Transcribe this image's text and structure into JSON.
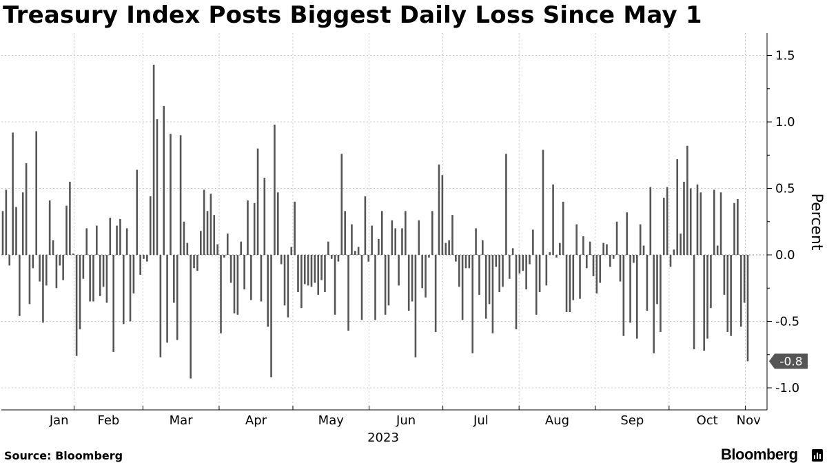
{
  "title": "Treasury Index Posts Biggest Daily Loss Since May 1",
  "source": "Source: Bloomberg",
  "brand": "Bloomberg",
  "brand_icon": "bloomberg-terminal-icon",
  "colors": {
    "bar": "#555555",
    "grid": "#c8c8c8",
    "callout": "#555555",
    "text": "#000000"
  },
  "chart_data": {
    "type": "bar",
    "ylabel": "Percent",
    "ylim": [
      -1.2,
      1.65
    ],
    "yticks": [
      1.5,
      1.0,
      0.5,
      0.0,
      -0.5,
      -1.0
    ],
    "ytick_labels": [
      "1.5",
      "1.0",
      "0.5",
      "0.0",
      "-0.5",
      "-1.0"
    ],
    "grid": true,
    "year_label": "2023",
    "x_start": "2023-01-03",
    "x_end": "2023-11-02",
    "months": [
      {
        "label": "Jan",
        "start": "2023-01-01"
      },
      {
        "label": "Feb",
        "start": "2023-02-01"
      },
      {
        "label": "Mar",
        "start": "2023-03-01"
      },
      {
        "label": "Apr",
        "start": "2023-04-01"
      },
      {
        "label": "May",
        "start": "2023-05-01"
      },
      {
        "label": "Jun",
        "start": "2023-06-01"
      },
      {
        "label": "Jul",
        "start": "2023-07-01"
      },
      {
        "label": "Aug",
        "start": "2023-08-01"
      },
      {
        "label": "Sep",
        "start": "2023-09-01"
      },
      {
        "label": "Oct",
        "start": "2023-10-01"
      },
      {
        "label": "Nov",
        "start": "2023-11-01"
      }
    ],
    "last_value_label": "-0.8",
    "values": [
      0.33,
      0.49,
      -0.08,
      0.92,
      0.36,
      -0.46,
      0.47,
      0.69,
      -0.37,
      -0.1,
      0.93,
      -0.2,
      -0.51,
      -0.23,
      0.41,
      0.11,
      -0.25,
      -0.08,
      -0.19,
      0.37,
      0.55,
      0.01,
      -0.76,
      -0.56,
      -0.18,
      0.2,
      -0.35,
      -0.35,
      0.22,
      -0.31,
      -0.24,
      -0.36,
      0.28,
      -0.73,
      0.22,
      0.27,
      -0.52,
      0.2,
      -0.5,
      -0.29,
      0.64,
      -0.15,
      -0.03,
      -0.05,
      0.44,
      1.43,
      1.02,
      -0.77,
      1.12,
      -0.66,
      0.91,
      -0.36,
      -0.64,
      0.9,
      0.25,
      0.09,
      -0.93,
      -0.1,
      -0.12,
      0.18,
      0.49,
      0.33,
      0.46,
      0.3,
      0.08,
      -0.59,
      -0.02,
      0.16,
      -0.21,
      -0.44,
      -0.45,
      0.1,
      -0.26,
      0.41,
      -0.34,
      0.39,
      0.8,
      -0.35,
      0.58,
      -0.54,
      -0.92,
      0.98,
      0.47,
      -0.07,
      -0.38,
      -0.47,
      0.06,
      0.4,
      -0.28,
      -0.4,
      -0.22,
      -0.23,
      -0.24,
      -0.21,
      -0.3,
      -0.19,
      -0.28,
      0.1,
      -0.03,
      -0.45,
      -0.05,
      0.76,
      0.33,
      -0.57,
      0.23,
      0.03,
      0.06,
      -0.49,
      0.44,
      -0.05,
      0.22,
      -0.49,
      0.12,
      0.33,
      -0.45,
      -0.38,
      0.26,
      0.2,
      -0.23,
      0.2,
      0.33,
      -0.42,
      -0.35,
      -0.77,
      0.26,
      -0.25,
      -0.32,
      -0.02,
      0.33,
      -0.58,
      0.68,
      0.6,
      0.09,
      0.11,
      0.3,
      -0.05,
      -0.24,
      -0.49,
      -0.1,
      -0.1,
      -0.74,
      0.2,
      -0.3,
      0.11,
      -0.48,
      -0.37,
      -0.59,
      -0.09,
      -0.28,
      -0.24,
      0.76,
      -0.18,
      0.05,
      -0.56,
      -0.14,
      -0.12,
      -0.26,
      -0.07,
      0.19,
      -0.45,
      -0.28,
      0.79,
      -0.23,
      0.02,
      0.53,
      -0.02,
      0.09,
      0.4,
      -0.43,
      -0.43,
      -0.34,
      0.23,
      -0.33,
      0.14,
      -0.1,
      0.1,
      -0.16,
      -0.29,
      -0.21,
      0.09,
      0.08,
      -0.09,
      -0.03,
      0.25,
      -0.2,
      -0.61,
      0.32,
      -0.51,
      -0.06,
      -0.63,
      0.23,
      0.07,
      -0.42,
      0.51,
      -0.74,
      -0.37,
      -0.58,
      0.43,
      0.51,
      -0.09,
      0.04,
      0.72,
      0.16,
      0.55,
      0.82,
      0.5,
      -0.71,
      0.53,
      0.47,
      -0.72,
      -0.63,
      -0.4,
      0.49,
      0.07,
      0.47,
      -0.3,
      -0.58,
      -0.61,
      0.39,
      0.42,
      -0.54,
      -0.36,
      -0.8
    ]
  }
}
